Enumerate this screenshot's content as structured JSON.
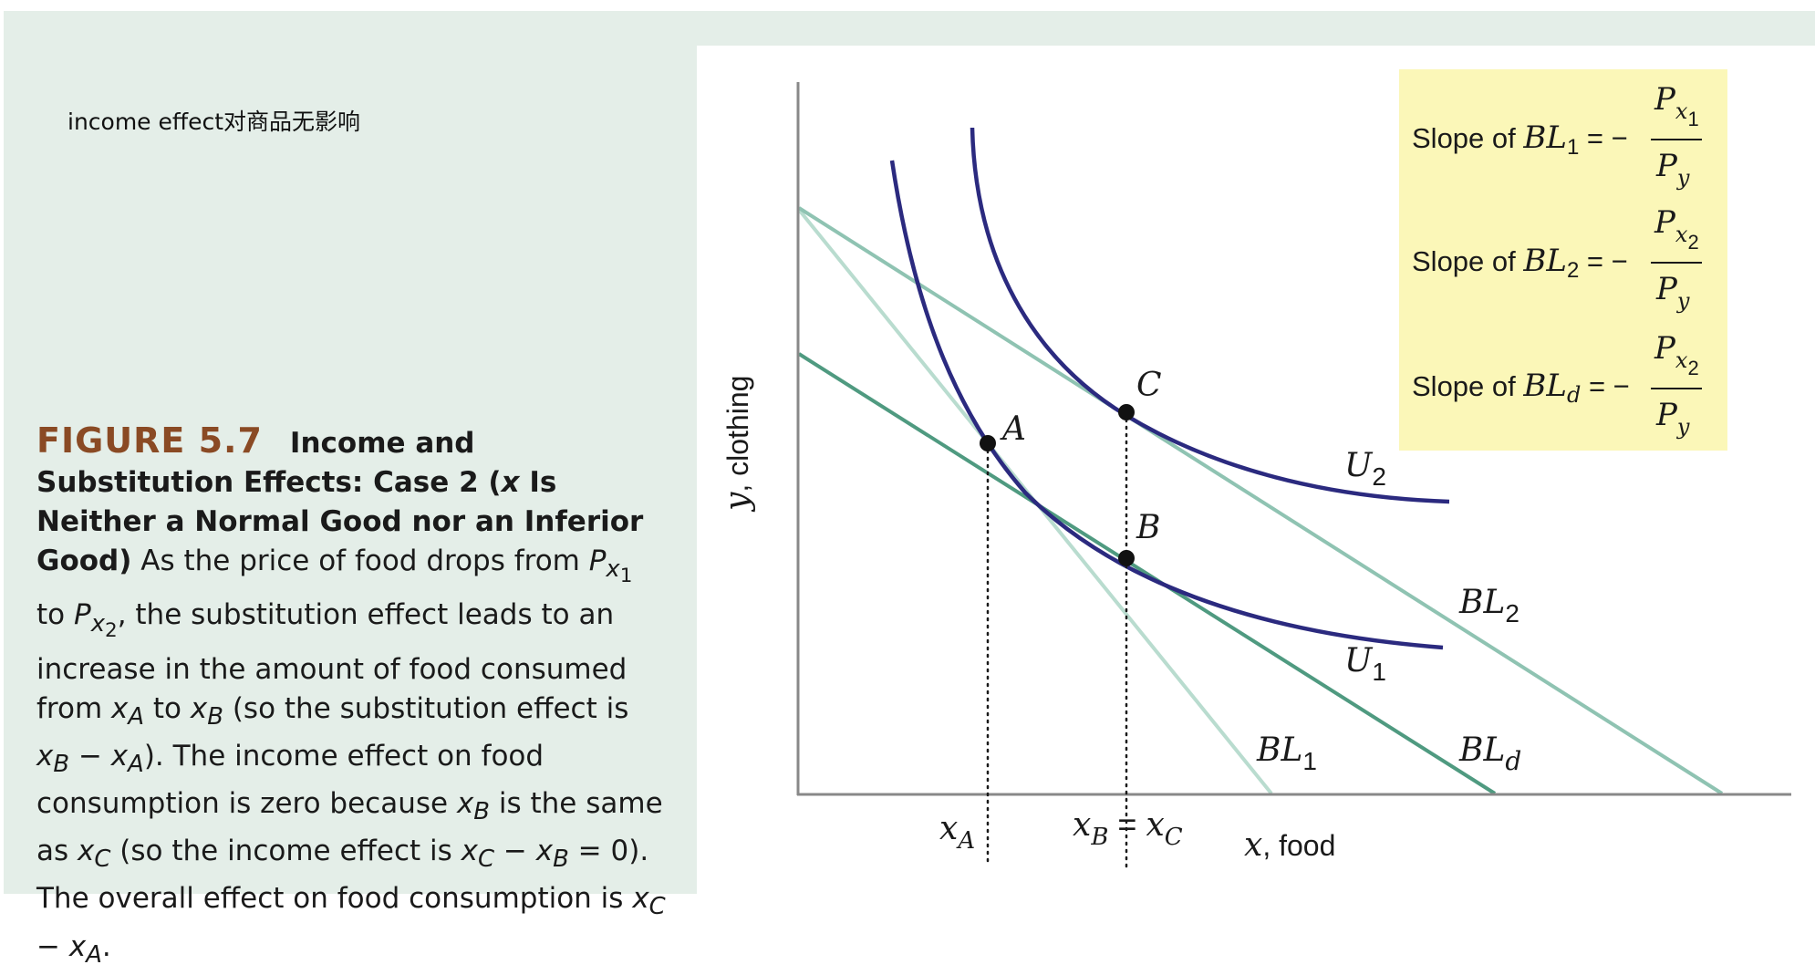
{
  "note": "income effect对商品无影响",
  "figure": {
    "number": "FIGURE 5.7",
    "title": "Income and Substitution Effects: Case 2 (x Is Neither a Normal Good nor an Inferior Good)",
    "body": "As the price of food drops from Px1 to Px2, the substitution effect leads to an increase in the amount of food consumed from xA to xB (so the substitution effect is xB − xA). The income effect on food consumption is zero because xB is the same as xC (so the income effect is xC − xB = 0). The overall effect on food consumption is xC − xA."
  },
  "axes": {
    "y_label": "y, clothing",
    "x_label": "x, food",
    "x_ticks": [
      "xA",
      "xB = xC"
    ]
  },
  "points": [
    "A",
    "B",
    "C"
  ],
  "curves": [
    "U1",
    "U2"
  ],
  "budget_lines": [
    "BL1",
    "BL2",
    "BLd"
  ],
  "legend": [
    "Slope of BL1 = −Px1/Py",
    "Slope of BL2 = −Px2/Py",
    "Slope of BLd = −Px2/Py"
  ],
  "colors": {
    "bl1": "#b9dccf",
    "bl2": "#8fc3b2",
    "bld": "#4f9a80",
    "indifference": "#2b2a7f",
    "legend_bg": "#fbf7b8",
    "figure_number": "#8a4a24"
  }
}
